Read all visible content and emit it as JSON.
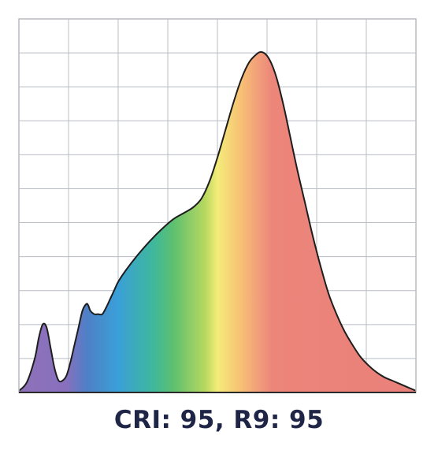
{
  "caption": "CRI: 95, R9: 95",
  "colors": {
    "grid": "#b8bcc4",
    "axis": "#2a2a2a",
    "outline": "#1e1e1e",
    "caption": "#1f2547",
    "spectrum": [
      "#8e72b8",
      "#8870be",
      "#4f7fc6",
      "#3aa0d8",
      "#3fb89a",
      "#5ec06e",
      "#b8d860",
      "#f4ec7a",
      "#f7c074",
      "#f2a07a",
      "#ec857a",
      "#e9807a"
    ]
  },
  "chart_data": {
    "type": "area",
    "title": "",
    "xlabel": "",
    "ylabel": "",
    "grid": true,
    "grid_columns": 8,
    "grid_rows": 11,
    "xlim": [
      0,
      100
    ],
    "ylim": [
      0,
      100
    ],
    "series": [
      {
        "x": [
          0,
          2,
          4,
          5,
          6,
          7,
          8,
          9,
          10,
          11,
          12,
          13,
          14,
          15,
          16,
          17,
          17.5,
          18,
          19,
          20,
          21,
          22,
          23,
          24,
          25,
          27,
          30,
          33,
          36,
          39,
          42,
          44,
          46,
          48,
          50,
          52,
          54,
          56,
          58,
          60,
          61,
          62,
          63,
          64,
          65,
          66,
          67,
          68,
          70,
          72,
          74,
          76,
          78,
          80,
          82,
          84,
          86,
          88,
          90,
          92,
          94,
          96,
          98,
          100
        ],
        "values": [
          0.5,
          3,
          10,
          16,
          20,
          19,
          13,
          7,
          3.5,
          3.5,
          5,
          9,
          14,
          19,
          24,
          26,
          25.5,
          24,
          23,
          23,
          23,
          25,
          27.5,
          30,
          32.5,
          36,
          40.5,
          44.5,
          48,
          51,
          53,
          54.5,
          57,
          62,
          69,
          77,
          85,
          92,
          97,
          99.5,
          100,
          99.5,
          98,
          95.5,
          92,
          87.5,
          82.5,
          77,
          66,
          56,
          46,
          37,
          29,
          23,
          18,
          14,
          10.5,
          8,
          6,
          4.5,
          3.5,
          2.5,
          1.5,
          0.5
        ]
      }
    ]
  }
}
